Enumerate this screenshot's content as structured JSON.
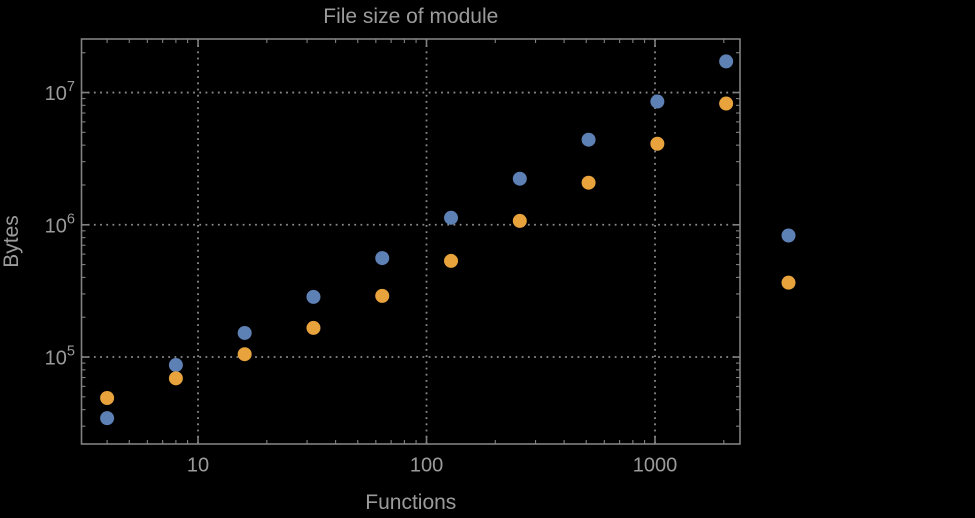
{
  "title": "File size of module",
  "colors": {
    "background": "#000000",
    "frame": "#818181",
    "grid": "#8a8a8a",
    "text": "#9b9b9b",
    "series_blue": "#5E81B5",
    "series_orange": "#E8A33D"
  },
  "chart_data": {
    "type": "scatter",
    "title": "File size of module",
    "xlabel": "Functions",
    "ylabel": "Bytes",
    "x_scale": "log",
    "y_scale": "log",
    "grid": true,
    "legend": "none",
    "x_range": [
      3.09,
      2355
    ],
    "y_range": [
      22000,
      25400000
    ],
    "x_ticks": [
      {
        "value": 10,
        "label": "10"
      },
      {
        "value": 100,
        "label": "100"
      },
      {
        "value": 1000,
        "label": "1000"
      }
    ],
    "y_ticks": [
      {
        "value": 100000,
        "base": "10",
        "exp": "5"
      },
      {
        "value": 1000000,
        "base": "10",
        "exp": "6"
      },
      {
        "value": 10000000,
        "base": "10",
        "exp": "7"
      }
    ],
    "series": [
      {
        "name": "blue",
        "color": "#5E81B5",
        "points": [
          [
            4,
            34500
          ],
          [
            8,
            87000
          ],
          [
            16,
            152000
          ],
          [
            32,
            285000
          ],
          [
            64,
            560000
          ],
          [
            128,
            1130000
          ],
          [
            256,
            2230000
          ],
          [
            512,
            4400000
          ],
          [
            1024,
            8550000
          ],
          [
            2048,
            17200000
          ],
          [
            3840,
            830000
          ]
        ]
      },
      {
        "name": "orange",
        "color": "#E8A33D",
        "points": [
          [
            4,
            49000
          ],
          [
            8,
            69000
          ],
          [
            16,
            105000
          ],
          [
            32,
            166000
          ],
          [
            64,
            290000
          ],
          [
            128,
            533000
          ],
          [
            256,
            1070000
          ],
          [
            512,
            2080000
          ],
          [
            1024,
            4100000
          ],
          [
            2048,
            8260000
          ],
          [
            3840,
            365000
          ]
        ]
      }
    ]
  }
}
